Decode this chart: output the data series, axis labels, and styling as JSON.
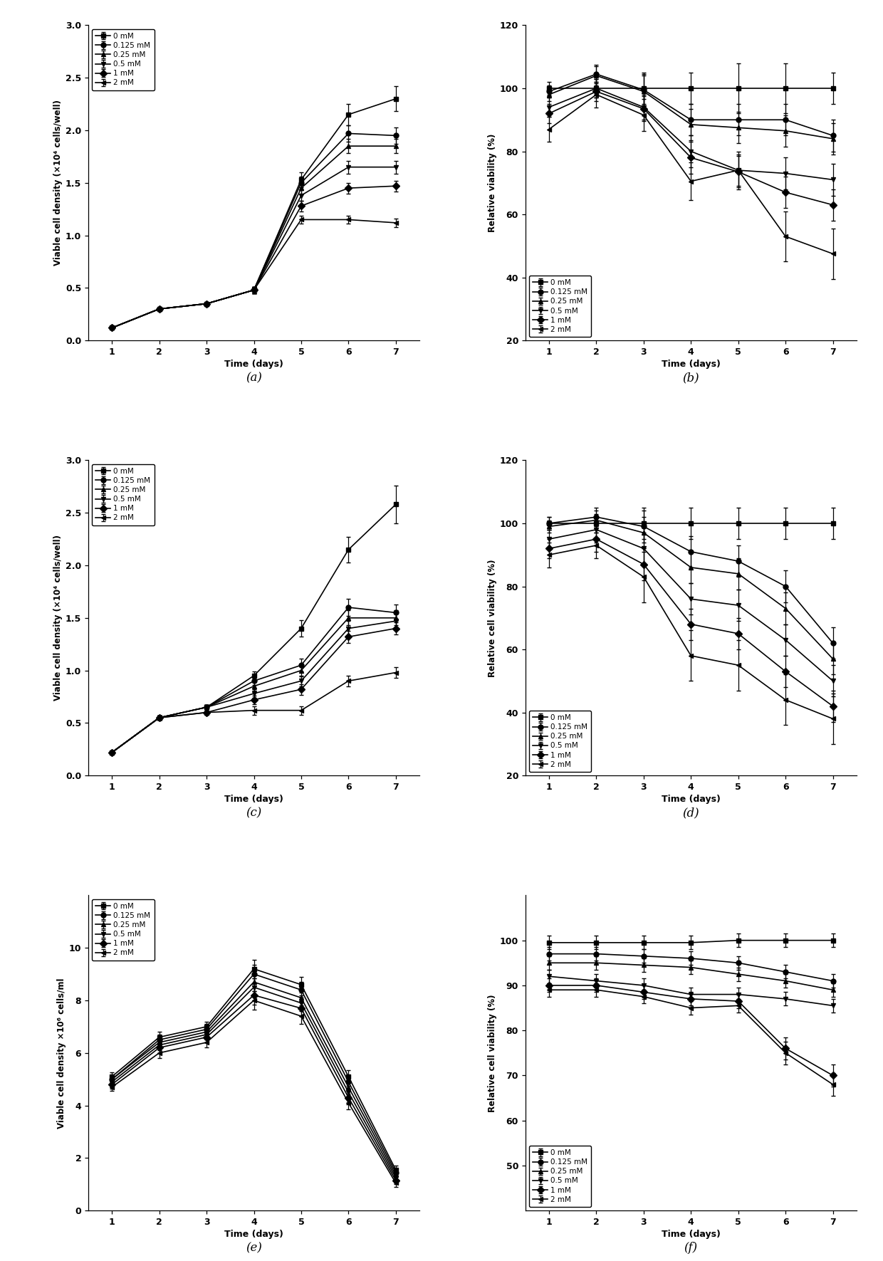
{
  "days": [
    1,
    2,
    3,
    4,
    5,
    6,
    7
  ],
  "labels": [
    "0 mM",
    "0.125 mM",
    "0.25 mM",
    "0.5 mM",
    "1 mM",
    "2 mM"
  ],
  "markers": [
    "s",
    "o",
    "^",
    "v",
    "D",
    "<"
  ],
  "panel_a": {
    "xlabel": "Time (days)",
    "ylabel": "Viable cell density (×10⁴ cells/well)",
    "ylim": [
      0.0,
      3.0
    ],
    "yticks": [
      0.0,
      0.5,
      1.0,
      1.5,
      2.0,
      2.5,
      3.0
    ],
    "ytick_labels": [
      "0.0",
      "0.5",
      "1.0",
      "1.5",
      "2.0",
      "2.5",
      "3.0"
    ],
    "legend_loc": "upper left",
    "data": [
      [
        0.12,
        0.3,
        0.35,
        0.48,
        1.53,
        2.15,
        2.3
      ],
      [
        0.12,
        0.3,
        0.35,
        0.48,
        1.5,
        1.97,
        1.95
      ],
      [
        0.12,
        0.3,
        0.35,
        0.48,
        1.45,
        1.85,
        1.85
      ],
      [
        0.12,
        0.3,
        0.35,
        0.48,
        1.38,
        1.65,
        1.65
      ],
      [
        0.12,
        0.3,
        0.35,
        0.48,
        1.28,
        1.45,
        1.47
      ],
      [
        0.12,
        0.3,
        0.35,
        0.48,
        1.15,
        1.15,
        1.12
      ]
    ],
    "errors": [
      [
        0.005,
        0.01,
        0.01,
        0.03,
        0.07,
        0.1,
        0.12
      ],
      [
        0.005,
        0.01,
        0.01,
        0.03,
        0.06,
        0.08,
        0.08
      ],
      [
        0.005,
        0.01,
        0.01,
        0.03,
        0.06,
        0.07,
        0.07
      ],
      [
        0.005,
        0.01,
        0.01,
        0.03,
        0.05,
        0.06,
        0.06
      ],
      [
        0.005,
        0.01,
        0.01,
        0.03,
        0.05,
        0.05,
        0.05
      ],
      [
        0.005,
        0.01,
        0.01,
        0.03,
        0.04,
        0.04,
        0.04
      ]
    ]
  },
  "panel_b": {
    "xlabel": "Time (days)",
    "ylabel": "Relative viability (%)",
    "ylim": [
      20,
      120
    ],
    "yticks": [
      20,
      40,
      60,
      80,
      100,
      120
    ],
    "ytick_labels": [
      "20",
      "40",
      "60",
      "80",
      "100",
      "120"
    ],
    "legend_loc": "lower left",
    "data": [
      [
        100.0,
        100.0,
        100.0,
        100.0,
        100.0,
        100.0,
        100.0
      ],
      [
        99.0,
        104.5,
        99.5,
        90.0,
        90.0,
        90.0,
        85.0
      ],
      [
        98.0,
        104.0,
        99.0,
        88.5,
        87.5,
        86.5,
        84.0
      ],
      [
        94.0,
        100.0,
        94.0,
        80.0,
        74.0,
        73.0,
        71.0
      ],
      [
        92.0,
        99.0,
        93.5,
        78.0,
        73.5,
        67.0,
        63.0
      ],
      [
        87.0,
        98.0,
        91.5,
        70.5,
        74.0,
        53.0,
        47.5
      ]
    ],
    "errors": [
      [
        2.0,
        3.0,
        5.0,
        5.0,
        8.0,
        8.0,
        5.0
      ],
      [
        2.0,
        3.0,
        5.0,
        5.0,
        5.0,
        5.0,
        5.0
      ],
      [
        2.0,
        3.0,
        5.0,
        5.0,
        5.0,
        5.0,
        5.0
      ],
      [
        3.0,
        3.0,
        4.0,
        5.0,
        5.0,
        5.0,
        5.0
      ],
      [
        3.0,
        3.0,
        4.0,
        5.0,
        5.0,
        5.0,
        5.0
      ],
      [
        4.0,
        4.0,
        5.0,
        6.0,
        6.0,
        8.0,
        8.0
      ]
    ]
  },
  "panel_c": {
    "xlabel": "Time (days)",
    "ylabel": "Viable cell density (×10⁴ cells/well)",
    "ylim": [
      0.0,
      3.0
    ],
    "yticks": [
      0.0,
      0.5,
      1.0,
      1.5,
      2.0,
      2.5,
      3.0
    ],
    "ytick_labels": [
      "0.0",
      "0.5",
      "1.0",
      "1.5",
      "2.0",
      "2.5",
      "3.0"
    ],
    "legend_loc": "upper left",
    "data": [
      [
        0.22,
        0.55,
        0.65,
        0.95,
        1.4,
        2.15,
        2.58
      ],
      [
        0.22,
        0.55,
        0.65,
        0.9,
        1.05,
        1.6,
        1.55
      ],
      [
        0.22,
        0.55,
        0.65,
        0.85,
        1.0,
        1.5,
        1.5
      ],
      [
        0.22,
        0.55,
        0.65,
        0.78,
        0.9,
        1.4,
        1.47
      ],
      [
        0.22,
        0.55,
        0.6,
        0.72,
        0.82,
        1.32,
        1.4
      ],
      [
        0.22,
        0.55,
        0.6,
        0.62,
        0.62,
        0.9,
        0.98
      ]
    ],
    "errors": [
      [
        0.01,
        0.02,
        0.02,
        0.04,
        0.08,
        0.12,
        0.18
      ],
      [
        0.01,
        0.02,
        0.02,
        0.04,
        0.06,
        0.08,
        0.08
      ],
      [
        0.01,
        0.02,
        0.02,
        0.04,
        0.06,
        0.07,
        0.07
      ],
      [
        0.01,
        0.02,
        0.02,
        0.04,
        0.05,
        0.07,
        0.07
      ],
      [
        0.01,
        0.02,
        0.02,
        0.04,
        0.05,
        0.06,
        0.06
      ],
      [
        0.01,
        0.02,
        0.02,
        0.04,
        0.04,
        0.05,
        0.05
      ]
    ]
  },
  "panel_d": {
    "xlabel": "Time (days)",
    "ylabel": "Relative cell viability (%)",
    "ylim": [
      20,
      120
    ],
    "yticks": [
      20,
      40,
      60,
      80,
      100,
      120
    ],
    "ytick_labels": [
      "20",
      "40",
      "60",
      "80",
      "100",
      "120"
    ],
    "legend_loc": "lower left",
    "data": [
      [
        100.0,
        100.0,
        100.0,
        100.0,
        100.0,
        100.0,
        100.0
      ],
      [
        100.0,
        102.0,
        99.0,
        91.0,
        88.0,
        80.0,
        62.0
      ],
      [
        99.0,
        101.0,
        97.0,
        86.0,
        84.0,
        73.0,
        57.0
      ],
      [
        95.0,
        98.0,
        92.0,
        76.0,
        74.0,
        63.0,
        50.0
      ],
      [
        92.0,
        95.0,
        87.0,
        68.0,
        65.0,
        53.0,
        42.0
      ],
      [
        90.0,
        93.0,
        83.0,
        58.0,
        55.0,
        44.0,
        38.0
      ]
    ],
    "errors": [
      [
        2.0,
        3.0,
        5.0,
        5.0,
        5.0,
        5.0,
        5.0
      ],
      [
        2.0,
        3.0,
        5.0,
        5.0,
        5.0,
        5.0,
        5.0
      ],
      [
        2.0,
        3.0,
        5.0,
        5.0,
        5.0,
        5.0,
        5.0
      ],
      [
        3.0,
        4.0,
        5.0,
        5.0,
        5.0,
        5.0,
        5.0
      ],
      [
        3.0,
        4.0,
        5.0,
        5.0,
        5.0,
        5.0,
        5.0
      ],
      [
        4.0,
        4.0,
        8.0,
        8.0,
        8.0,
        8.0,
        8.0
      ]
    ]
  },
  "panel_e": {
    "xlabel": "Time (days)",
    "ylabel": "Viable cell density ×10⁶ cells/ml",
    "ylim": [
      0,
      12
    ],
    "yticks": [
      0,
      2,
      4,
      6,
      8,
      10
    ],
    "ytick_labels": [
      "0",
      "2",
      "4",
      "6",
      "8",
      "10"
    ],
    "legend_loc": "upper left",
    "data": [
      [
        5.1,
        6.6,
        7.0,
        9.2,
        8.6,
        5.1,
        1.55
      ],
      [
        5.0,
        6.5,
        6.9,
        9.0,
        8.4,
        4.9,
        1.45
      ],
      [
        5.0,
        6.4,
        6.8,
        8.7,
        8.1,
        4.7,
        1.35
      ],
      [
        4.9,
        6.3,
        6.7,
        8.5,
        7.9,
        4.5,
        1.25
      ],
      [
        4.8,
        6.2,
        6.6,
        8.2,
        7.7,
        4.3,
        1.15
      ],
      [
        4.7,
        6.0,
        6.4,
        8.0,
        7.4,
        4.1,
        1.05
      ]
    ],
    "errors": [
      [
        0.15,
        0.2,
        0.2,
        0.35,
        0.3,
        0.25,
        0.15
      ],
      [
        0.15,
        0.2,
        0.2,
        0.35,
        0.3,
        0.25,
        0.15
      ],
      [
        0.15,
        0.2,
        0.2,
        0.35,
        0.3,
        0.25,
        0.15
      ],
      [
        0.15,
        0.2,
        0.2,
        0.35,
        0.3,
        0.25,
        0.15
      ],
      [
        0.15,
        0.2,
        0.2,
        0.35,
        0.3,
        0.25,
        0.15
      ],
      [
        0.15,
        0.2,
        0.2,
        0.35,
        0.3,
        0.25,
        0.15
      ]
    ]
  },
  "panel_f": {
    "xlabel": "Time (days)",
    "ylabel": "Relative cell viability (%)",
    "ylim": [
      40,
      110
    ],
    "yticks": [
      50,
      60,
      70,
      80,
      90,
      100
    ],
    "ytick_labels": [
      "50",
      "60",
      "70",
      "80",
      "90",
      "100"
    ],
    "legend_loc": "lower left",
    "data": [
      [
        99.5,
        99.5,
        99.5,
        99.5,
        100.0,
        100.0,
        100.0
      ],
      [
        97.0,
        97.0,
        96.5,
        96.0,
        95.0,
        93.0,
        91.0
      ],
      [
        95.0,
        95.0,
        94.5,
        94.0,
        92.5,
        91.0,
        89.0
      ],
      [
        92.0,
        91.0,
        90.0,
        88.0,
        88.0,
        87.0,
        85.5
      ],
      [
        90.0,
        90.0,
        88.5,
        87.0,
        86.5,
        76.0,
        70.0
      ],
      [
        89.0,
        89.0,
        87.5,
        85.0,
        85.5,
        75.0,
        68.0
      ]
    ],
    "errors": [
      [
        1.5,
        1.5,
        1.5,
        1.5,
        1.5,
        1.5,
        1.5
      ],
      [
        1.5,
        1.5,
        1.5,
        1.5,
        1.5,
        1.5,
        1.5
      ],
      [
        1.5,
        1.5,
        1.5,
        1.5,
        1.5,
        1.5,
        1.5
      ],
      [
        1.5,
        1.5,
        1.5,
        1.5,
        1.5,
        1.5,
        1.5
      ],
      [
        1.5,
        1.5,
        1.5,
        1.5,
        1.5,
        2.5,
        2.5
      ],
      [
        1.5,
        1.5,
        1.5,
        1.5,
        1.5,
        2.5,
        2.5
      ]
    ]
  },
  "panel_labels": [
    "(a)",
    "(b)",
    "(c)",
    "(d)",
    "(e)",
    "(f)"
  ],
  "color": "black",
  "linewidth": 1.2,
  "markersize": 5,
  "capsize": 2.5,
  "elinewidth": 0.9
}
